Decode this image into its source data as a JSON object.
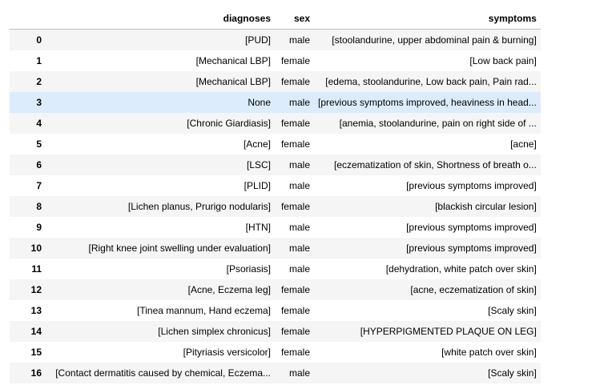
{
  "table": {
    "columns": [
      "",
      "diagnoses",
      "sex",
      "symptoms"
    ],
    "rows": [
      {
        "index": "0",
        "diagnoses": "[PUD]",
        "sex": "male",
        "symptoms": "[stoolandurine, upper abdominal pain & burning]"
      },
      {
        "index": "1",
        "diagnoses": "[Mechanical LBP]",
        "sex": "female",
        "symptoms": "[Low back pain]"
      },
      {
        "index": "2",
        "diagnoses": "[Mechanical LBP]",
        "sex": "female",
        "symptoms": "[edema, stoolandurine, Low back pain, Pain rad..."
      },
      {
        "index": "3",
        "diagnoses": "None",
        "sex": "male",
        "symptoms": "[previous symptoms improved, heaviness in head..."
      },
      {
        "index": "4",
        "diagnoses": "[Chronic Giardiasis]",
        "sex": "female",
        "symptoms": "[anemia, stoolandurine, pain on right side of ..."
      },
      {
        "index": "5",
        "diagnoses": "[Acne]",
        "sex": "female",
        "symptoms": "[acne]"
      },
      {
        "index": "6",
        "diagnoses": "[LSC]",
        "sex": "male",
        "symptoms": "[eczematization of skin, Shortness of breath o..."
      },
      {
        "index": "7",
        "diagnoses": "[PLID]",
        "sex": "male",
        "symptoms": "[previous symptoms improved]"
      },
      {
        "index": "8",
        "diagnoses": "[Lichen planus, Prurigo nodularis]",
        "sex": "female",
        "symptoms": "[blackish circular lesion]"
      },
      {
        "index": "9",
        "diagnoses": "[HTN]",
        "sex": "male",
        "symptoms": "[previous symptoms improved]"
      },
      {
        "index": "10",
        "diagnoses": "[Right knee joint swelling under evaluation]",
        "sex": "male",
        "symptoms": "[previous symptoms improved]"
      },
      {
        "index": "11",
        "diagnoses": "[Psoriasis]",
        "sex": "male",
        "symptoms": "[dehydration, white patch over skin]"
      },
      {
        "index": "12",
        "diagnoses": "[Acne, Eczema leg]",
        "sex": "female",
        "symptoms": "[acne, eczematization of skin]"
      },
      {
        "index": "13",
        "diagnoses": "[Tinea mannum, Hand eczema]",
        "sex": "female",
        "symptoms": "[Scaly skin]"
      },
      {
        "index": "14",
        "diagnoses": "[Lichen simplex chronicus]",
        "sex": "female",
        "symptoms": "[HYPERPIGMENTED PLAQUE ON LEG]"
      },
      {
        "index": "15",
        "diagnoses": "[Pityriasis versicolor]",
        "sex": "female",
        "symptoms": "[white patch over skin]"
      },
      {
        "index": "16",
        "diagnoses": "[Contact dermatitis caused by chemical, Eczema...",
        "sex": "male",
        "symptoms": "[Scaly skin]"
      }
    ]
  },
  "colors": {
    "hover_row": "#dcecfc",
    "odd_row": "#f5f5f5",
    "header_border": "#bdbdbd"
  }
}
